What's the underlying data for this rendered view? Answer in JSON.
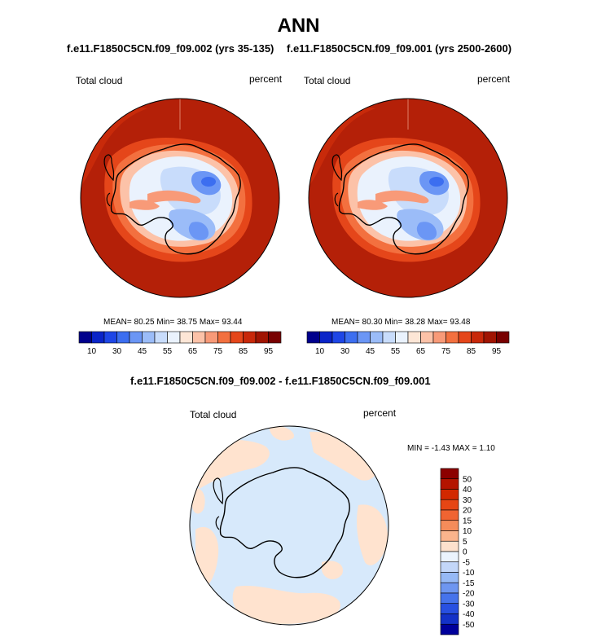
{
  "page": {
    "title": "ANN",
    "diff_title": "f.e11.F1850C5CN.f09_f09.002 - f.e11.F1850C5CN.f09_f09.001"
  },
  "colors": {
    "continent_line": "#000000",
    "diff_positive": "#ffe3cf",
    "diff_negative": "#d7e9fb"
  },
  "chart_data": [
    {
      "type": "heatmap",
      "projection": "south-polar-stereographic",
      "case_title": "f.e11.F1850C5CN.f09_f09.002 (yrs 35-135)",
      "variable": "Total cloud",
      "units": "percent",
      "stats": {
        "mean_label": "MEAN=",
        "mean": "80.25",
        "min_label": "Min=",
        "min": "38.75",
        "max_label": "Max=",
        "max": "93.44"
      },
      "colorbar": {
        "orientation": "horizontal",
        "tick_labels": [
          "10",
          "30",
          "45",
          "55",
          "65",
          "75",
          "85",
          "95"
        ],
        "colors": [
          "#00008c",
          "#0a24c8",
          "#1e46e6",
          "#3c6ef0",
          "#6b96f5",
          "#9bbcf8",
          "#c8dcfb",
          "#eaf2fd",
          "#fde6d6",
          "#fcc2a8",
          "#f89a78",
          "#f3703f",
          "#e5461a",
          "#c8280a",
          "#a01402",
          "#780000"
        ]
      }
    },
    {
      "type": "heatmap",
      "projection": "south-polar-stereographic",
      "case_title": "f.e11.F1850C5CN.f09_f09.001 (yrs 2500-2600)",
      "variable": "Total cloud",
      "units": "percent",
      "stats": {
        "mean_label": "MEAN=",
        "mean": "80.30",
        "min_label": "Min=",
        "min": "38.28",
        "max_label": "Max=",
        "max": "93.48"
      },
      "colorbar": {
        "orientation": "horizontal",
        "tick_labels": [
          "10",
          "30",
          "45",
          "55",
          "65",
          "75",
          "85",
          "95"
        ],
        "colors": [
          "#00008c",
          "#0a24c8",
          "#1e46e6",
          "#3c6ef0",
          "#6b96f5",
          "#9bbcf8",
          "#c8dcfb",
          "#eaf2fd",
          "#fde6d6",
          "#fcc2a8",
          "#f89a78",
          "#f3703f",
          "#e5461a",
          "#c8280a",
          "#a01402",
          "#780000"
        ]
      }
    },
    {
      "type": "heatmap",
      "projection": "south-polar-stereographic",
      "variable": "Total cloud",
      "units": "percent",
      "stats": {
        "min_label": "MIN =",
        "min": "-1.43",
        "max_label": "MAX =",
        "max": "1.10"
      },
      "colorbar": {
        "orientation": "vertical",
        "tick_labels": [
          "50",
          "40",
          "30",
          "20",
          "15",
          "10",
          "5",
          "0",
          "-5",
          "-10",
          "-15",
          "-20",
          "-30",
          "-40",
          "-50"
        ],
        "colors": [
          "#8c0000",
          "#b41400",
          "#d22800",
          "#e64614",
          "#f06432",
          "#f58c5a",
          "#fab48c",
          "#fde1cd",
          "#ebf3fd",
          "#c3d7f8",
          "#96b9f5",
          "#6e96f0",
          "#4673eb",
          "#2850e1",
          "#1432c8",
          "#00009b"
        ]
      }
    }
  ]
}
